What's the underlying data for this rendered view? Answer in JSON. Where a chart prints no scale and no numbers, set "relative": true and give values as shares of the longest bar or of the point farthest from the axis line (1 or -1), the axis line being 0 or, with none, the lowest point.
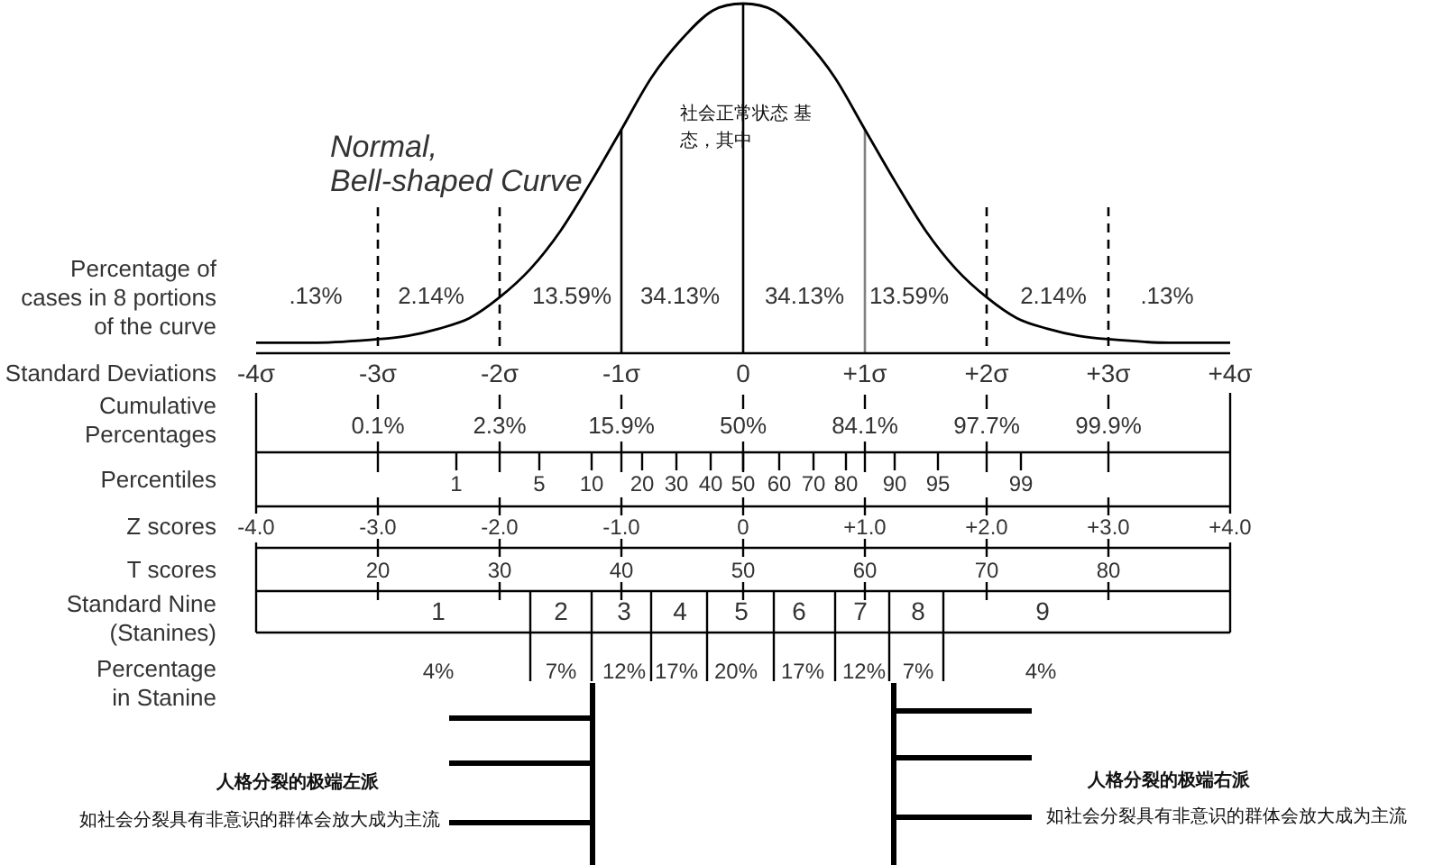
{
  "chart_data": {
    "type": "line",
    "title": "Normal, Bell-shaped Curve",
    "ylabel": "Percentage of cases in 8 portions of the curve",
    "xlabel": "Standard Deviations",
    "relative": true,
    "color": "#000000",
    "x": [
      -4,
      -3.5,
      -3,
      -2.75,
      -2.5,
      -2.25,
      -2,
      -1.75,
      -1.5,
      -1.25,
      -1,
      -0.75,
      -0.5,
      -0.25,
      0,
      0.25,
      0.5,
      0.75,
      1,
      1.25,
      1.5,
      1.75,
      2,
      2.25,
      2.5,
      2.75,
      3,
      3.5,
      4
    ],
    "values": [
      0.03,
      0.03,
      0.04,
      0.05,
      0.07,
      0.1,
      0.16,
      0.24,
      0.35,
      0.49,
      0.64,
      0.79,
      0.9,
      0.98,
      1,
      0.98,
      0.9,
      0.79,
      0.64,
      0.49,
      0.35,
      0.24,
      0.16,
      0.1,
      0.07,
      0.05,
      0.04,
      0.03,
      0.03
    ],
    "xlim": [
      -4,
      4
    ],
    "xticks": [
      {
        "value": -4,
        "label": "-4σ"
      },
      {
        "value": -3,
        "label": "-3σ"
      },
      {
        "value": -2,
        "label": "-2σ"
      },
      {
        "value": -1,
        "label": "-1σ"
      },
      0,
      {
        "value": 1,
        "label": "+1σ"
      },
      {
        "value": 2,
        "label": "+2σ"
      },
      {
        "value": 3,
        "label": "+3σ"
      },
      {
        "value": 4,
        "label": "+4σ"
      }
    ],
    "ref_lines": [
      {
        "axis": "x",
        "value": -3,
        "line_style": "dashed"
      },
      {
        "axis": "x",
        "value": -2,
        "line_style": "dashed"
      },
      {
        "axis": "x",
        "value": -1
      },
      {
        "axis": "x",
        "value": 0
      },
      {
        "axis": "x",
        "value": 1,
        "color": "#808080"
      },
      {
        "axis": "x",
        "value": 2,
        "line_style": "dashed"
      },
      {
        "axis": "x",
        "value": 3,
        "line_style": "dashed"
      }
    ],
    "annotations": [
      ".13%",
      "2.14%",
      "13.59%",
      "34.13%",
      "34.13%",
      "13.59%",
      "2.14%",
      ".13%",
      "Cumulative Percentages",
      "0.1%",
      "2.3%",
      "15.9%",
      "50%",
      "84.1%",
      "97.7%",
      "99.9%",
      "Percentiles",
      "1",
      "5",
      "10",
      "20",
      "30",
      "40",
      "50",
      "60",
      "70",
      "80",
      "90",
      "95",
      "99",
      "Z scores",
      "-4.0",
      "-3.0",
      "-2.0",
      "-1.0",
      "0",
      "+1.0",
      "+2.0",
      "+3.0",
      "+4.0",
      "T scores",
      "20",
      "30",
      "40",
      "50",
      "60",
      "70",
      "80",
      "Standard Nine (Stanines)",
      "1",
      "2",
      "3",
      "4",
      "5",
      "6",
      "7",
      "8",
      "9",
      "Percentage in Stanine",
      "4%",
      "7%",
      "12%",
      "17%",
      "20%",
      "17%",
      "12%",
      "7%",
      "4%",
      "社会正常状态 基态，其中",
      "人格分裂的极端左派",
      "如社会分裂具有非意识的群体会放大成为主流",
      "人格分裂的极端右派",
      "如社会分裂具有非意识的群体会放大成为主流"
    ]
  }
}
